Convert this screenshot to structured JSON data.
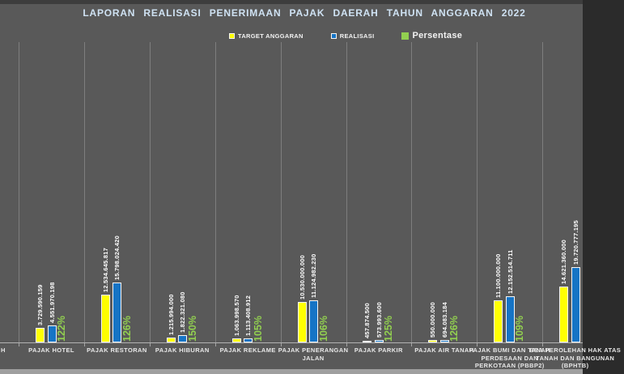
{
  "window": {
    "bg": "#595959",
    "top_strip_color": "#3d3d3d",
    "bottom_strip_color": "#9f9f9f"
  },
  "chart_data": {
    "type": "bar",
    "title": "LAPORAN REALISASI PENERIMAAN PAJAK DAERAH TAHUN ANGGARAN 2022",
    "title_color": "#cfe2f3",
    "legend": [
      {
        "label": "TARGET ANGGARAN",
        "color": "#ffff00",
        "size": "small"
      },
      {
        "label": "REALISASI",
        "color": "#1674c5",
        "size": "small"
      },
      {
        "label": "Persentase",
        "color": "#92d050",
        "size": "large"
      }
    ],
    "legend_position": "top",
    "value_axis": {
      "visible": false,
      "implied_max": 80000000000
    },
    "grid": "vertical-category-separators",
    "bar_colors": {
      "target": "#ffff00",
      "realisasi": "#1674c5",
      "outline": "#f5f5f5"
    },
    "percent_color": "#92d050",
    "value_label_rotation": 90,
    "partial_left_category_label": "H",
    "categories": [
      {
        "label_lines": [
          "PAJAK HOTEL"
        ],
        "target": 3729590159,
        "realisasi": 4551970198,
        "target_label": "3.729.590.159",
        "realisasi_label": "4.551.970.198",
        "persentase_label": "122%"
      },
      {
        "label_lines": [
          "PAJAK RESTORAN"
        ],
        "target": 12534645817,
        "realisasi": 15798024420,
        "target_label": "12.534.645.817",
        "realisasi_label": "15.798.024.420",
        "persentase_label": "126%"
      },
      {
        "label_lines": [
          "PAJAK HIBURAN"
        ],
        "target": 1215994000,
        "realisasi": 1822321080,
        "target_label": "1.215.994.000",
        "realisasi_label": "1.822.321.080",
        "persentase_label": "150%"
      },
      {
        "label_lines": [
          "PAJAK REKLAME"
        ],
        "target": 1063998570,
        "realisasi": 1113408912,
        "target_label": "1.063.998.570",
        "realisasi_label": "1.113.408.912",
        "persentase_label": "105%"
      },
      {
        "label_lines": [
          "PAJAK PENERANGAN",
          "JALAN"
        ],
        "target": 10530000000,
        "realisasi": 11124982230,
        "target_label": "10.530.000.000",
        "realisasi_label": "11.124.982.230",
        "persentase_label": "106%"
      },
      {
        "label_lines": [
          "PAJAK PARKIR"
        ],
        "target": 457874500,
        "realisasi": 573993600,
        "target_label": "457.874.500",
        "realisasi_label": "573.993.600",
        "persentase_label": "125%"
      },
      {
        "label_lines": [
          "PAJAK AIR TANAH"
        ],
        "target": 550000000,
        "realisasi": 694083184,
        "target_label": "550.000.000",
        "realisasi_label": "694.083.184",
        "persentase_label": "126%"
      },
      {
        "label_lines": [
          "PAJAK BUMI DAN TANAH",
          "PERDESAAN DAN",
          "PERKOTAAN (PBBP2)"
        ],
        "target": 11100000000,
        "realisasi": 12152514711,
        "target_label": "11.100.000.000",
        "realisasi_label": "12.152.514.711",
        "persentase_label": "109%"
      },
      {
        "label_lines": [
          "BEA PEROLEHAN HAK ATAS",
          "TANAH DAN BANGUNAN",
          "(BPHTB)"
        ],
        "target": 14621360000,
        "realisasi": 19720777195,
        "target_label": "14.621.360.000",
        "realisasi_label": "19.720.777.195",
        "persentase_label": null
      }
    ]
  }
}
